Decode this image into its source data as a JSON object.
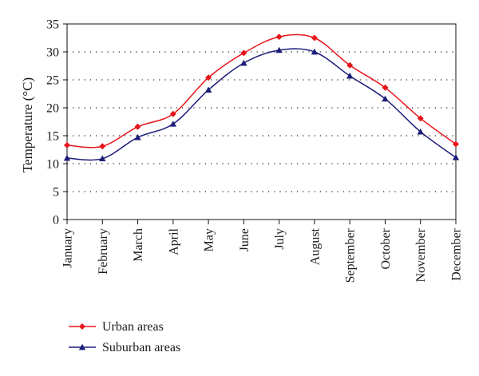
{
  "chart_data": {
    "type": "line",
    "title": "",
    "xlabel": "",
    "ylabel": "Temperature (°C)",
    "ylim": [
      0,
      35
    ],
    "yticks": [
      0,
      5,
      10,
      15,
      20,
      25,
      30,
      35
    ],
    "grid": "horizontal dotted",
    "legend_position": "bottom-left",
    "categories": [
      "January",
      "February",
      "March",
      "April",
      "May",
      "June",
      "July",
      "August",
      "September",
      "October",
      "November",
      "December"
    ],
    "series": [
      {
        "name": "Urban areas",
        "color": "#e8141a",
        "marker": "diamond",
        "values": [
          13.3,
          13.1,
          16.6,
          18.9,
          25.4,
          29.8,
          32.7,
          32.5,
          27.6,
          23.6,
          18.1,
          13.5
        ]
      },
      {
        "name": "Suburban areas",
        "color": "#1c1c7a",
        "marker": "triangle",
        "values": [
          11.0,
          10.9,
          14.7,
          17.1,
          23.2,
          28.0,
          30.3,
          30.0,
          25.7,
          21.6,
          15.7,
          11.1
        ]
      }
    ]
  }
}
